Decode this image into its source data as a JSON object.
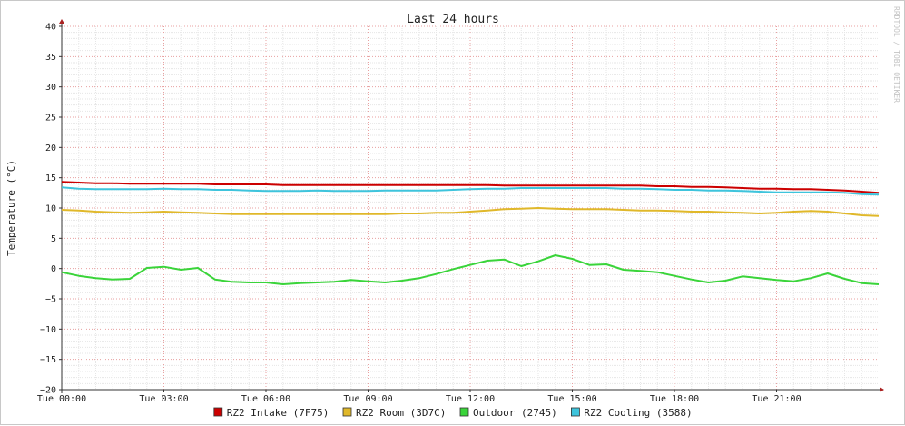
{
  "chart_data": {
    "type": "line",
    "title": "Last 24 hours",
    "ylabel": "Temperature (°C)",
    "xlabel": "",
    "watermark": "RRDTOOL / TOBI OETIKER",
    "ylim": [
      -20,
      40
    ],
    "y_ticks": [
      40,
      35,
      30,
      25,
      20,
      15,
      10,
      5,
      0,
      -5,
      -10,
      -15,
      -20
    ],
    "y_tick_labels": [
      "40",
      "35",
      "30",
      "25",
      "20",
      "15",
      "10",
      "5",
      "0",
      "−5",
      "−10",
      "−15",
      "−20"
    ],
    "x_unit": "hours",
    "xlim": [
      0,
      24
    ],
    "x_ticks": [
      0,
      3,
      6,
      9,
      12,
      15,
      18,
      21
    ],
    "x_tick_labels": [
      "Tue 00:00",
      "Tue 03:00",
      "Tue 06:00",
      "Tue 09:00",
      "Tue 12:00",
      "Tue 15:00",
      "Tue 18:00",
      "Tue 21:00"
    ],
    "grid": true,
    "legend_position": "bottom",
    "x": [
      0,
      0.5,
      1,
      1.5,
      2,
      2.5,
      3,
      3.5,
      4,
      4.5,
      5,
      5.5,
      6,
      6.5,
      7,
      7.5,
      8,
      8.5,
      9,
      9.5,
      10,
      10.5,
      11,
      11.5,
      12,
      12.5,
      13,
      13.5,
      14,
      14.5,
      15,
      15.5,
      16,
      16.5,
      17,
      17.5,
      18,
      18.5,
      19,
      19.5,
      20,
      20.5,
      21,
      21.5,
      22,
      22.5,
      23,
      23.5,
      24
    ],
    "series": [
      {
        "name": "RZ2 Intake (7F75)",
        "color": "#cc0000",
        "values": [
          14.3,
          14.2,
          14.1,
          14.1,
          14.0,
          14.0,
          14.0,
          14.0,
          14.0,
          13.9,
          13.9,
          13.9,
          13.9,
          13.8,
          13.8,
          13.8,
          13.8,
          13.8,
          13.8,
          13.8,
          13.8,
          13.8,
          13.8,
          13.8,
          13.8,
          13.8,
          13.7,
          13.7,
          13.7,
          13.7,
          13.7,
          13.7,
          13.7,
          13.7,
          13.7,
          13.6,
          13.6,
          13.5,
          13.5,
          13.4,
          13.3,
          13.2,
          13.2,
          13.1,
          13.1,
          13.0,
          12.9,
          12.7,
          12.5
        ]
      },
      {
        "name": "RZ2 Room (3D7C)",
        "color": "#e0b82a",
        "values": [
          9.7,
          9.6,
          9.4,
          9.3,
          9.2,
          9.3,
          9.4,
          9.3,
          9.2,
          9.1,
          9.0,
          9.0,
          9.0,
          9.0,
          9.0,
          9.0,
          9.0,
          9.0,
          9.0,
          9.0,
          9.1,
          9.1,
          9.2,
          9.2,
          9.4,
          9.6,
          9.8,
          9.9,
          10.0,
          9.9,
          9.8,
          9.8,
          9.8,
          9.7,
          9.6,
          9.6,
          9.5,
          9.4,
          9.4,
          9.3,
          9.2,
          9.1,
          9.2,
          9.4,
          9.5,
          9.4,
          9.1,
          8.8,
          8.7
        ]
      },
      {
        "name": "Outdoor (2745)",
        "color": "#3ad43a",
        "values": [
          -0.6,
          -1.2,
          -1.6,
          -1.8,
          -1.7,
          0.1,
          0.3,
          -0.2,
          0.1,
          -1.8,
          -2.2,
          -2.3,
          -2.3,
          -2.6,
          -2.4,
          -2.3,
          -2.2,
          -1.9,
          -2.1,
          -2.3,
          -2.0,
          -1.6,
          -0.9,
          -0.1,
          0.6,
          1.3,
          1.5,
          0.4,
          1.2,
          2.2,
          1.6,
          0.6,
          0.7,
          -0.2,
          -0.4,
          -0.6,
          -1.2,
          -1.8,
          -2.3,
          -2.0,
          -1.3,
          -1.6,
          -1.9,
          -2.1,
          -1.6,
          -0.8,
          -1.7,
          -2.4,
          -2.6
        ]
      },
      {
        "name": "RZ2 Cooling (3588)",
        "color": "#3ec4dc",
        "values": [
          13.4,
          13.2,
          13.1,
          13.1,
          13.1,
          13.1,
          13.2,
          13.1,
          13.1,
          13.0,
          13.0,
          12.9,
          12.8,
          12.8,
          12.8,
          12.9,
          12.8,
          12.8,
          12.8,
          12.9,
          12.9,
          12.9,
          12.9,
          13.0,
          13.1,
          13.2,
          13.2,
          13.3,
          13.3,
          13.3,
          13.3,
          13.3,
          13.3,
          13.2,
          13.2,
          13.1,
          13.0,
          13.0,
          12.9,
          12.9,
          12.8,
          12.7,
          12.6,
          12.6,
          12.6,
          12.6,
          12.5,
          12.3,
          12.2
        ]
      }
    ]
  }
}
